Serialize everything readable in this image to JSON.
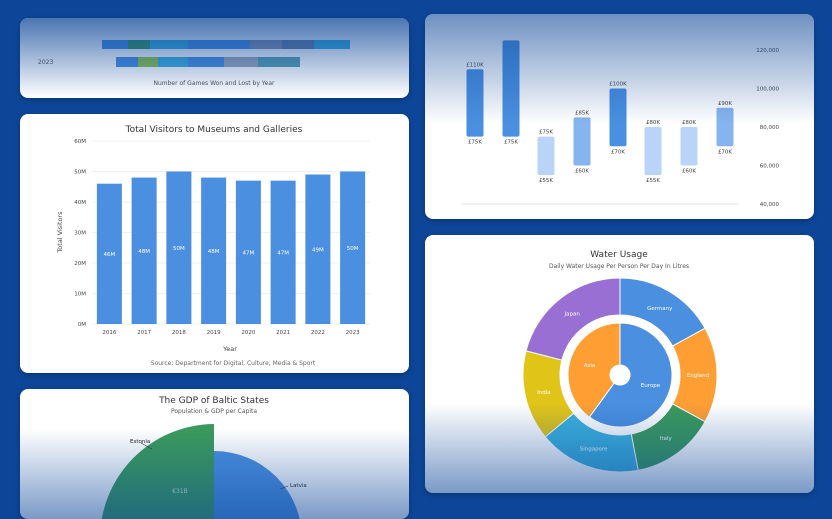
{
  "games_card": {
    "row_label": "2023",
    "caption": "Number of Games Won and Lost by Year"
  },
  "visitors_chart": {
    "chart_data": {
      "type": "bar",
      "title": "Total Visitors to Museums and Galleries",
      "xlabel": "Year",
      "ylabel": "Total Visitors",
      "categories": [
        "2016",
        "2017",
        "2018",
        "2019",
        "2020",
        "2021",
        "2022",
        "2023"
      ],
      "values": [
        46,
        48,
        50,
        48,
        47,
        47,
        49,
        50
      ],
      "data_labels": [
        "46M",
        "48M",
        "50M",
        "48M",
        "47M",
        "47M",
        "49M",
        "50M"
      ],
      "ylim": [
        0,
        60
      ],
      "yticks": [
        "0M",
        "10M",
        "20M",
        "30M",
        "40M",
        "50M",
        "60M"
      ],
      "grid": true,
      "color": "#4a8fe0",
      "source": "Source: Department for Digital, Culture, Media & Sport"
    }
  },
  "range_chart": {
    "chart_data": {
      "type": "bar",
      "ylim": [
        40000,
        130000
      ],
      "yticks": [
        "40,000",
        "60,000",
        "80,000",
        "100,000",
        "120,000"
      ],
      "ranges": [
        {
          "low": 75000,
          "high": 110000,
          "low_label": "£75K",
          "high_label": "£110K",
          "color": "#4a8fe0"
        },
        {
          "low": 75000,
          "high": 125000,
          "low_label": "£75K",
          "high_label": "",
          "color": "#4a8fe0"
        },
        {
          "low": 55000,
          "high": 75000,
          "low_label": "£55K",
          "high_label": "£75K",
          "color": "#b9d4f6"
        },
        {
          "low": 60000,
          "high": 85000,
          "low_label": "£60K",
          "high_label": "£85K",
          "color": "#86b4ee"
        },
        {
          "low": 70000,
          "high": 100000,
          "low_label": "£70K",
          "high_label": "£100K",
          "color": "#4a8fe0"
        },
        {
          "low": 55000,
          "high": 80000,
          "low_label": "£55K",
          "high_label": "£80K",
          "color": "#b9d4f6"
        },
        {
          "low": 60000,
          "high": 80000,
          "low_label": "£60K",
          "high_label": "£80K",
          "color": "#b9d4f6"
        },
        {
          "low": 70000,
          "high": 90000,
          "low_label": "£70K",
          "high_label": "£90K",
          "color": "#86b4ee"
        }
      ]
    }
  },
  "water_chart": {
    "chart_data": {
      "type": "pie",
      "title": "Water Usage",
      "subtitle": "Daily Water Usage Per Person Per Day In Litres",
      "inner": [
        {
          "label": "Europe",
          "value": 60,
          "color": "#4a8fe0"
        },
        {
          "label": "Asia",
          "value": 40,
          "color": "#ff9f33"
        }
      ],
      "outer": [
        {
          "label": "Germany",
          "value": 17,
          "color": "#4a8fe0"
        },
        {
          "label": "England",
          "value": 16,
          "color": "#ff9f33"
        },
        {
          "label": "Italy",
          "value": 14,
          "color": "#3a9a5c"
        },
        {
          "label": "Singapore",
          "value": 17,
          "color": "#3bb0dc"
        },
        {
          "label": "India",
          "value": 15,
          "color": "#e0c418"
        },
        {
          "label": "Japan",
          "value": 21,
          "color": "#9a6fd4"
        }
      ]
    }
  },
  "gdp_chart": {
    "chart_data": {
      "type": "pie",
      "title": "The GDP of Baltic States",
      "subtitle": "Population & GDP per Capita",
      "slices": [
        {
          "label": "Estonia",
          "value_label": "€31B",
          "color": "#3a9a5c"
        },
        {
          "label": "Latvia",
          "value_label": "",
          "color": "#4a8fe0"
        }
      ]
    }
  }
}
